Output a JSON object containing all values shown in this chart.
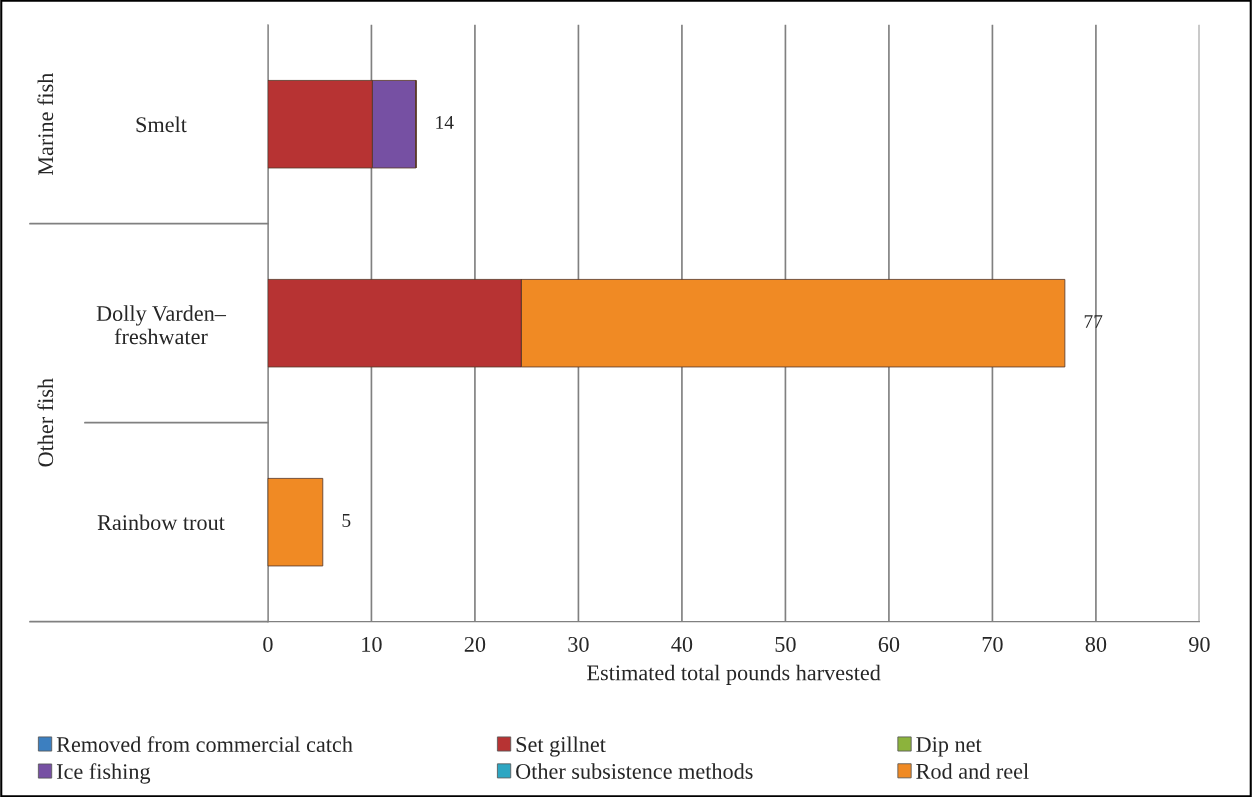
{
  "chart_data": {
    "type": "bar",
    "orientation": "horizontal",
    "stacked": true,
    "categories": [
      "Smelt",
      "Dolly Varden–\nfreshwater",
      "Rainbow trout"
    ],
    "series": [
      {
        "name": "Removed from commercial catch",
        "color": "#3c7fc0",
        "values": [
          null,
          null,
          null
        ]
      },
      {
        "name": "Set gillnet",
        "color": "#b73333",
        "values": [
          10.1,
          24.5,
          null
        ]
      },
      {
        "name": "Dip net",
        "color": "#8cb33c",
        "values": [
          null,
          null,
          null
        ]
      },
      {
        "name": "Ice fishing",
        "color": "#7650a3",
        "values": [
          4.2,
          null,
          null
        ]
      },
      {
        "name": "Other subsistence methods",
        "color": "#2ea6c2",
        "values": [
          null,
          null,
          null
        ]
      },
      {
        "name": "Rod and reel",
        "color": "#f08a24",
        "values": [
          null,
          52.5,
          5.3
        ]
      }
    ],
    "totals": [
      "14",
      "77",
      "5"
    ],
    "xlabel": "Estimated total pounds harvested",
    "xlim": [
      0,
      90
    ],
    "xticks": [
      0,
      10,
      20,
      30,
      40,
      50,
      60,
      70,
      80,
      90
    ],
    "grid": "x",
    "legend": "bottom",
    "annotations": [
      "Marine fish",
      "Other fish"
    ]
  }
}
